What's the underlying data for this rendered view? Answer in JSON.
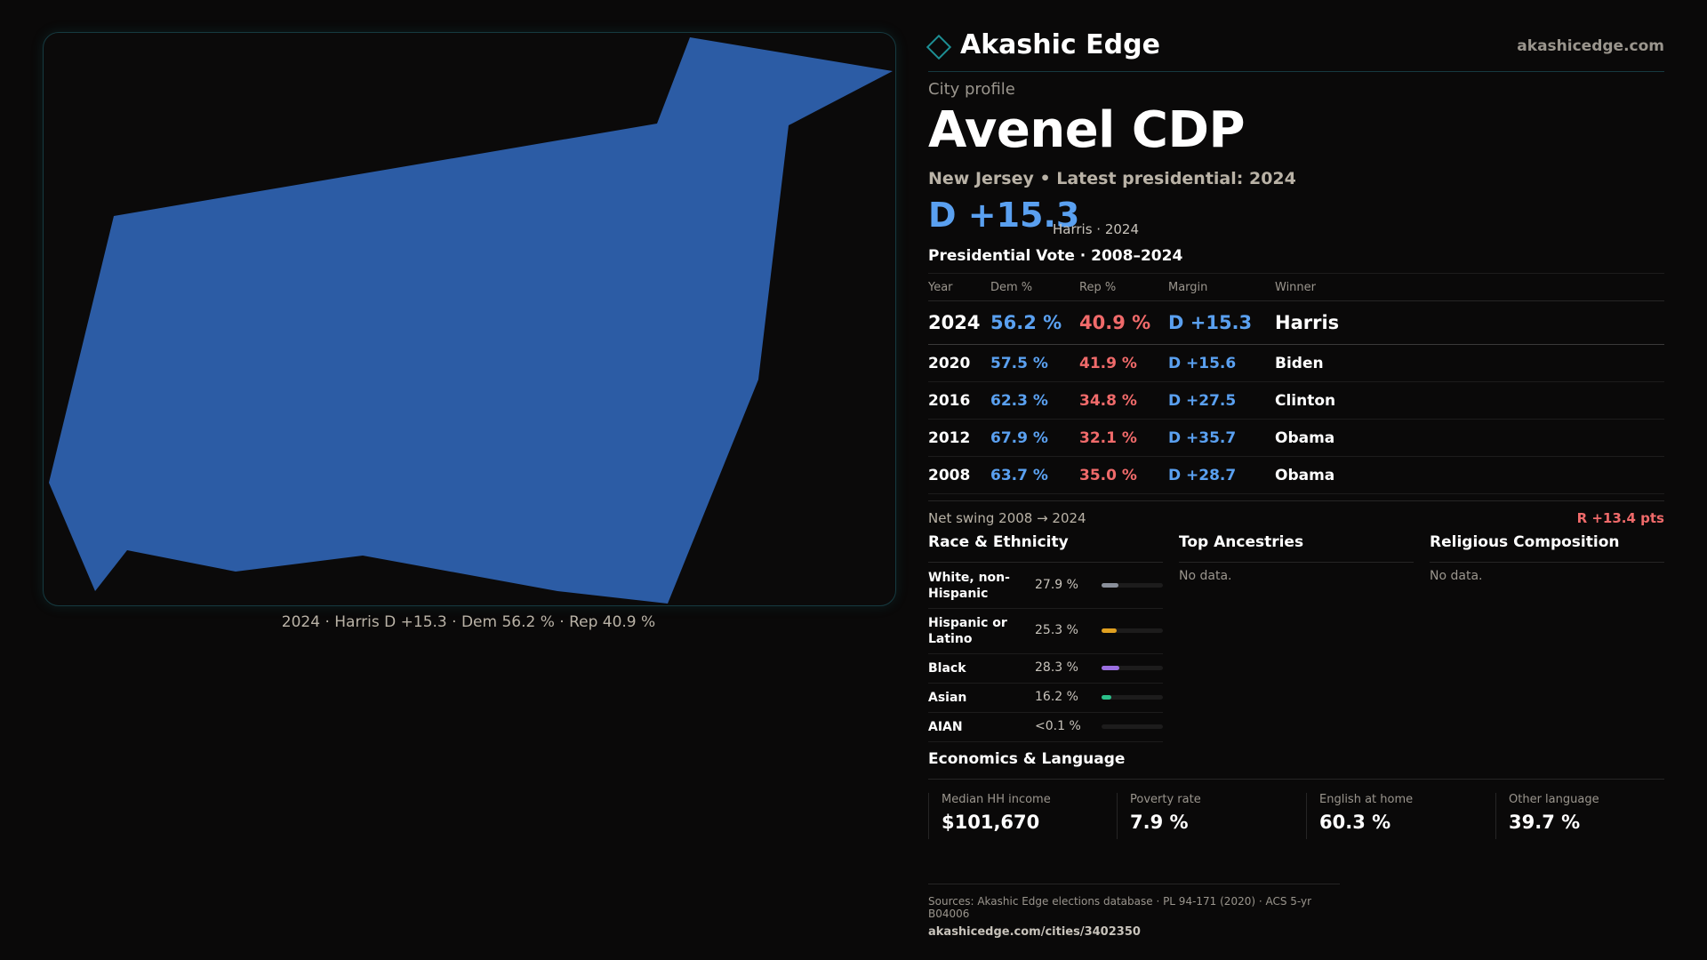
{
  "map": {
    "fill_color": "#2c5ca5",
    "caption": "2024 · Harris D +15.3 · Dem 56.2 % · Rep 40.9 %"
  },
  "header": {
    "brand": "Akashic Edge",
    "brand_icon": "diamond-icon",
    "site_url": "akashicedge.com"
  },
  "profile": {
    "eyebrow": "City profile",
    "title": "Avenel CDP",
    "subtitle": "New Jersey • Latest presidential: 2024",
    "headline_margin": "D +15.3",
    "headline_note": "Harris · 2024"
  },
  "presidential": {
    "title": "Presidential Vote · 2008–2024",
    "columns": [
      "Year",
      "Dem %",
      "Rep %",
      "Margin",
      "Winner"
    ],
    "rows": [
      {
        "year": "2024",
        "dem": "56.2 %",
        "rep": "40.9 %",
        "margin": "D +15.3",
        "winner": "Harris"
      },
      {
        "year": "2020",
        "dem": "57.5 %",
        "rep": "41.9 %",
        "margin": "D +15.6",
        "winner": "Biden"
      },
      {
        "year": "2016",
        "dem": "62.3 %",
        "rep": "34.8 %",
        "margin": "D +27.5",
        "winner": "Clinton"
      },
      {
        "year": "2012",
        "dem": "67.9 %",
        "rep": "32.1 %",
        "margin": "D +35.7",
        "winner": "Obama"
      },
      {
        "year": "2008",
        "dem": "63.7 %",
        "rep": "35.0 %",
        "margin": "D +28.7",
        "winner": "Obama"
      }
    ],
    "swing_label": "Net swing 2008 → 2024",
    "swing_value": "R +13.4 pts"
  },
  "race": {
    "title": "Race & Ethnicity",
    "items": [
      {
        "name": "White, non-Hispanic",
        "pct": "27.9 %",
        "value": 27.9,
        "color": "#8a8f9a"
      },
      {
        "name": "Hispanic or Latino",
        "pct": "25.3 %",
        "value": 25.3,
        "color": "#e0a020"
      },
      {
        "name": "Black",
        "pct": "28.3 %",
        "value": 28.3,
        "color": "#9b6fe0"
      },
      {
        "name": "Asian",
        "pct": "16.2 %",
        "value": 16.2,
        "color": "#2bc08a"
      },
      {
        "name": "AIAN",
        "pct": "<0.1 %",
        "value": 0.05,
        "color": "#8a8f9a"
      }
    ]
  },
  "ancestries": {
    "title": "Top Ancestries",
    "empty": "No data."
  },
  "religion": {
    "title": "Religious Composition",
    "empty": "No data."
  },
  "economics": {
    "title": "Economics & Language",
    "stats": [
      {
        "label": "Median HH income",
        "value": "$101,670"
      },
      {
        "label": "Poverty rate",
        "value": "7.9 %"
      },
      {
        "label": "English at home",
        "value": "60.3 %"
      },
      {
        "label": "Other language",
        "value": "39.7 %"
      }
    ]
  },
  "footer": {
    "sources": "Sources: Akashic Edge elections database · PL 94-171 (2020) · ACS 5-yr B04006",
    "url": "akashicedge.com/cities/3402350"
  }
}
